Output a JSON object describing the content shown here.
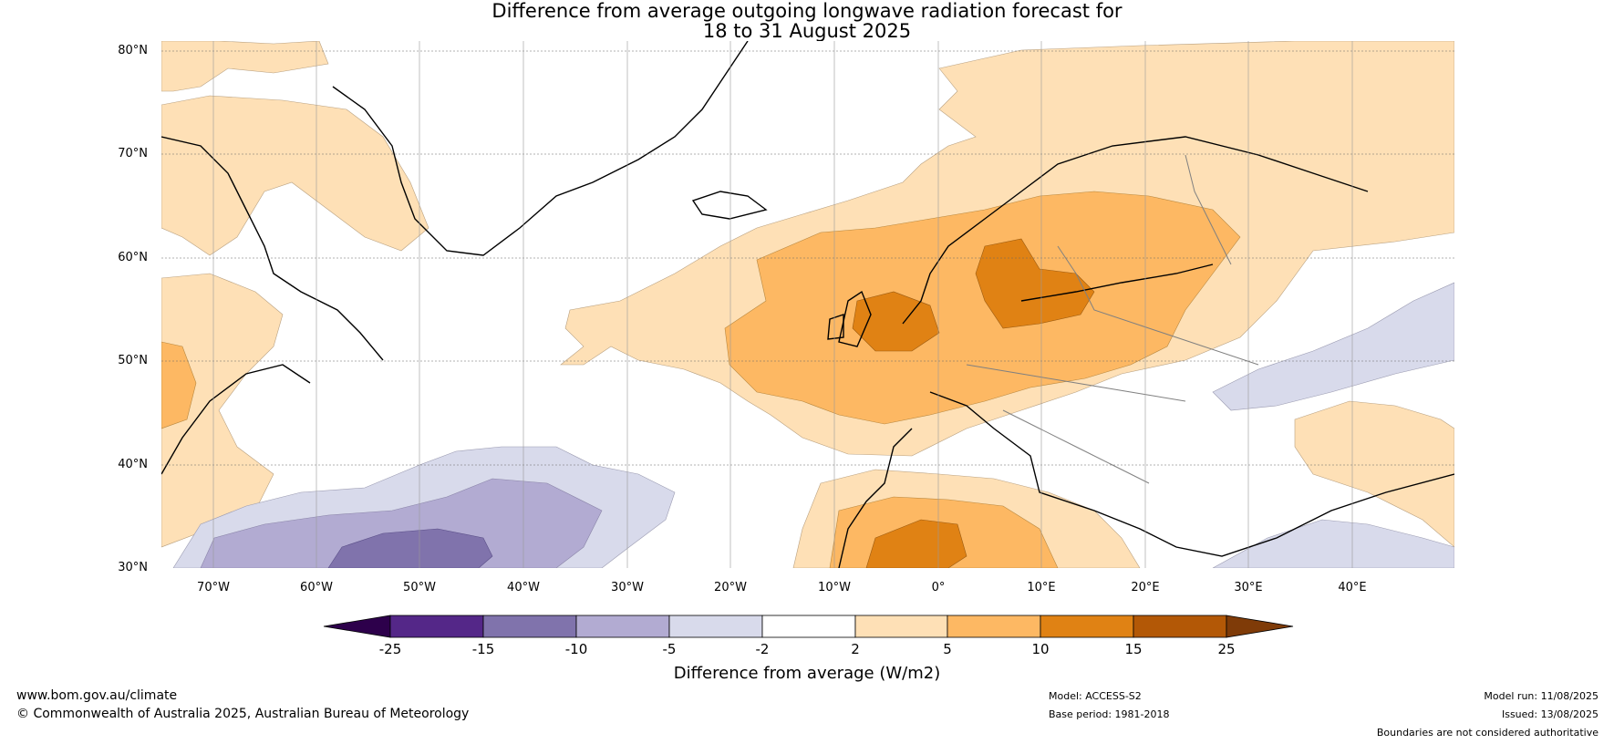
{
  "title": {
    "line1": "Difference from average outgoing longwave radiation forecast for",
    "line2": "18 to 31 August 2025"
  },
  "map": {
    "lat_labels": [
      "80°N",
      "70°N",
      "60°N",
      "50°N",
      "40°N",
      "30°N"
    ],
    "lon_labels": [
      "70°W",
      "60°W",
      "50°W",
      "40°W",
      "30°W",
      "20°W",
      "10°W",
      "0°",
      "10°E",
      "20°E",
      "30°E",
      "40°E"
    ],
    "colors": {
      "neg25": "#2d004b",
      "neg15": "#542788",
      "neg10": "#8073ac",
      "neg5": "#b2abd2",
      "neg2": "#d8daeb",
      "neutral": "#ffffff",
      "pos2": "#fee0b6",
      "pos5": "#fdb863",
      "pos10": "#e08214",
      "pos15": "#b35806",
      "pos25": "#7f3b08"
    }
  },
  "colorbar": {
    "ticks": [
      "-25",
      "-15",
      "-10",
      "-5",
      "-2",
      "2",
      "5",
      "10",
      "15",
      "25"
    ],
    "label": "Difference from average (W/m2)"
  },
  "footer": {
    "website": "www.bom.gov.au/climate",
    "copyright": "© Commonwealth of Australia 2025, Australian Bureau of Meteorology",
    "model": "Model: ACCESS-S2",
    "base_period": "Base period: 1981-2018",
    "model_run": "Model run: 11/08/2025",
    "issued": "Issued: 13/08/2025",
    "disclaimer": "Boundaries are not considered authoritative"
  }
}
